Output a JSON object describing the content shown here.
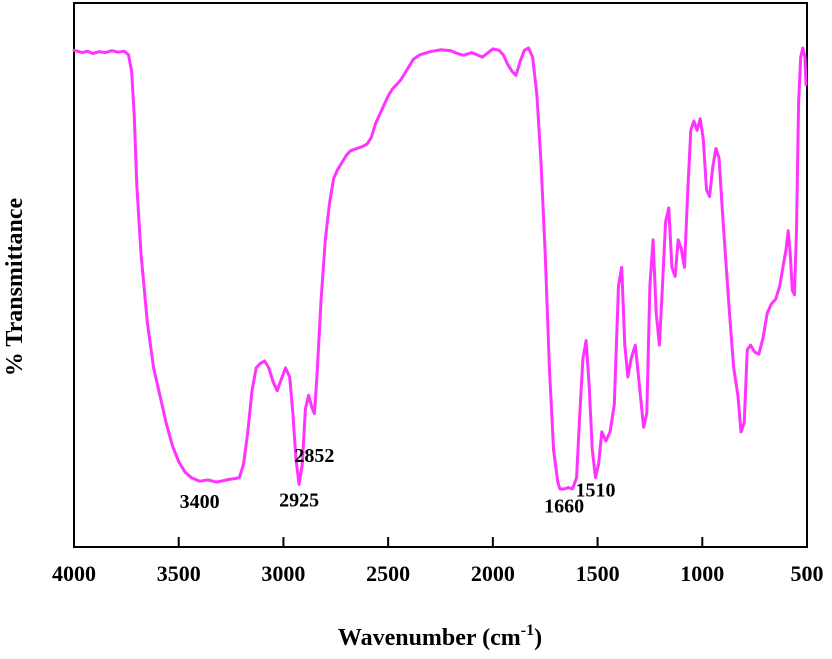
{
  "chart_data": {
    "type": "line",
    "xlabel": "Wavenumber (cm",
    "xlabel_sup": "-1",
    "xlabel_close": ")",
    "ylabel": "% Transmittance",
    "xlim": [
      4000,
      500
    ],
    "x_reversed": true,
    "ylim": [
      0,
      100
    ],
    "y_ticks_shown": false,
    "grid": false,
    "line_color": "#ff33ff",
    "x_ticks": [
      4000,
      3500,
      3000,
      2500,
      2000,
      1500,
      1000,
      500
    ],
    "x_tick_labels": [
      "4000",
      "3500",
      "3000",
      "2500",
      "2000",
      "1500",
      "1000",
      "500"
    ],
    "annotations": [
      {
        "text": "3400",
        "x": 3400,
        "y": 5.5
      },
      {
        "text": "2925",
        "x": 2925,
        "y": 5.8
      },
      {
        "text": "2852",
        "x": 2852,
        "y": 15.5
      },
      {
        "text": "1660",
        "x": 1660,
        "y": 4.5
      },
      {
        "text": "1510",
        "x": 1510,
        "y": 8.0
      }
    ],
    "series": [
      {
        "x": [
          4000,
          3960,
          3935,
          3910,
          3880,
          3850,
          3820,
          3790,
          3760,
          3740,
          3725,
          3712,
          3700,
          3680,
          3650,
          3620,
          3590,
          3560,
          3530,
          3500,
          3470,
          3440,
          3400,
          3360,
          3320,
          3290,
          3260,
          3230,
          3210,
          3190,
          3170,
          3150,
          3130,
          3110,
          3090,
          3070,
          3050,
          3030,
          3010,
          2990,
          2970,
          2955,
          2940,
          2925,
          2910,
          2895,
          2880,
          2865,
          2852,
          2840,
          2820,
          2800,
          2780,
          2760,
          2740,
          2720,
          2700,
          2680,
          2650,
          2620,
          2600,
          2580,
          2560,
          2540,
          2520,
          2500,
          2480,
          2460,
          2440,
          2420,
          2400,
          2380,
          2350,
          2300,
          2250,
          2200,
          2170,
          2140,
          2100,
          2050,
          2000,
          1970,
          1950,
          1930,
          1910,
          1890,
          1870,
          1850,
          1830,
          1810,
          1790,
          1770,
          1750,
          1730,
          1710,
          1690,
          1680,
          1670,
          1660,
          1640,
          1620,
          1600,
          1585,
          1570,
          1555,
          1540,
          1525,
          1510,
          1495,
          1480,
          1460,
          1440,
          1420,
          1400,
          1385,
          1370,
          1355,
          1340,
          1320,
          1300,
          1280,
          1265,
          1250,
          1235,
          1220,
          1205,
          1190,
          1175,
          1160,
          1145,
          1130,
          1115,
          1100,
          1085,
          1070,
          1055,
          1040,
          1025,
          1010,
          995,
          980,
          965,
          950,
          935,
          920,
          905,
          890,
          870,
          850,
          830,
          815,
          800,
          785,
          770,
          750,
          730,
          710,
          690,
          670,
          650,
          630,
          615,
          600,
          590,
          580,
          570,
          560,
          550,
          540,
          530,
          520,
          510,
          505
        ],
        "y": [
          99.5,
          99.0,
          99.3,
          98.8,
          99.2,
          99.0,
          99.4,
          99.1,
          99.3,
          98.5,
          95.0,
          85.0,
          70.0,
          55.0,
          40.0,
          30.0,
          24.0,
          18.0,
          13.0,
          9.5,
          7.2,
          6.0,
          5.2,
          5.5,
          5.0,
          5.3,
          5.6,
          5.8,
          6.0,
          9.0,
          16.0,
          25.0,
          30.0,
          31.0,
          31.5,
          30.0,
          27.0,
          25.0,
          27.5,
          30.0,
          28.0,
          20.0,
          10.0,
          4.5,
          9.0,
          21.0,
          24.0,
          21.5,
          20.0,
          28.0,
          45.0,
          58.0,
          66.0,
          71.5,
          73.5,
          75.0,
          76.5,
          77.5,
          78.0,
          78.5,
          79.0,
          80.5,
          83.5,
          85.5,
          87.5,
          89.5,
          91.0,
          92.0,
          93.0,
          94.5,
          96.0,
          97.5,
          98.5,
          99.2,
          99.6,
          99.4,
          98.8,
          98.4,
          99.0,
          98.0,
          99.8,
          99.5,
          98.5,
          96.5,
          95.0,
          94.0,
          97.0,
          99.5,
          100.0,
          98.0,
          90.0,
          75.0,
          55.0,
          30.0,
          12.0,
          5.0,
          3.5,
          3.5,
          3.5,
          3.8,
          3.5,
          6.0,
          20.0,
          32.0,
          36.0,
          26.0,
          12.0,
          6.0,
          9.0,
          16.0,
          14.0,
          16.0,
          22.0,
          48.0,
          52.0,
          35.0,
          28.0,
          32.0,
          35.0,
          26.0,
          17.0,
          20.0,
          48.0,
          58.0,
          42.0,
          35.0,
          48.0,
          62.0,
          65.0,
          52.0,
          50.0,
          58.0,
          56.0,
          52.0,
          68.0,
          82.0,
          84.0,
          82.0,
          84.5,
          80.0,
          69.0,
          67.5,
          74.0,
          78.0,
          76.0,
          65.0,
          55.0,
          42.0,
          30.0,
          24.0,
          16.0,
          18.0,
          34.0,
          35.0,
          33.5,
          33.0,
          36.5,
          42.0,
          44.0,
          45.0,
          48.0,
          52.0,
          56.0,
          60.0,
          55.0,
          47.0,
          46.0,
          60.0,
          88.0,
          98.0,
          100.0,
          98.0,
          92.0
        ]
      }
    ]
  }
}
